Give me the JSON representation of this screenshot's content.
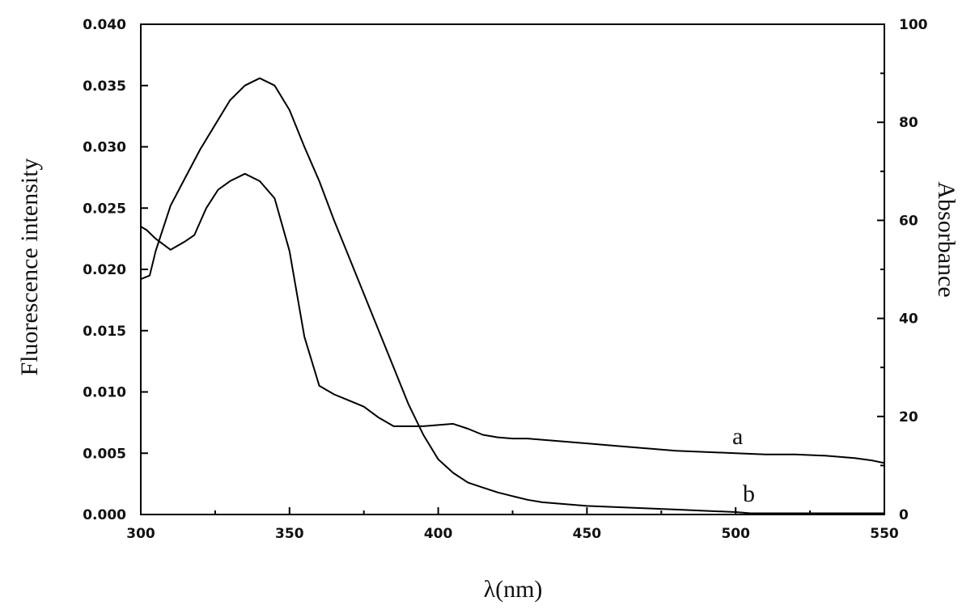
{
  "chart_data": {
    "type": "line",
    "xlabel": "λ(nm)",
    "ylabel_left": "Fluorescence intensity",
    "ylabel_right": "Absorbance",
    "xlim": [
      300,
      550
    ],
    "ylim_left": [
      0,
      0.04
    ],
    "ylim_right": [
      0,
      100
    ],
    "x_ticks": [
      "300",
      "350",
      "400",
      "450",
      "500",
      "550"
    ],
    "y_left_ticks": [
      "0.000",
      "0.005",
      "0.010",
      "0.015",
      "0.020",
      "0.025",
      "0.030",
      "0.035",
      "0.040"
    ],
    "y_right_ticks": [
      "0",
      "20",
      "40",
      "60",
      "80",
      "100"
    ],
    "grid": false,
    "series": [
      {
        "name": "a",
        "x": [
          300,
          302,
          305,
          310,
          315,
          318,
          322,
          326,
          330,
          335,
          340,
          345,
          350,
          355,
          360,
          365,
          370,
          375,
          380,
          385,
          390,
          395,
          400,
          405,
          410,
          415,
          420,
          425,
          430,
          440,
          450,
          460,
          470,
          480,
          490,
          500,
          510,
          520,
          530,
          540,
          546,
          550
        ],
        "y": [
          0.0235,
          0.0232,
          0.0225,
          0.0216,
          0.0223,
          0.0228,
          0.025,
          0.0265,
          0.0272,
          0.0278,
          0.0272,
          0.0258,
          0.0215,
          0.0145,
          0.0105,
          0.0098,
          0.0093,
          0.0088,
          0.0079,
          0.0072,
          0.0072,
          0.0072,
          0.0073,
          0.0074,
          0.007,
          0.0065,
          0.0063,
          0.0062,
          0.0062,
          0.006,
          0.0058,
          0.0056,
          0.0054,
          0.0052,
          0.0051,
          0.005,
          0.0049,
          0.0049,
          0.0048,
          0.0046,
          0.0044,
          0.0042
        ]
      },
      {
        "name": "b",
        "x": [
          300,
          303,
          305,
          310,
          315,
          320,
          325,
          330,
          335,
          340,
          345,
          350,
          355,
          360,
          365,
          370,
          375,
          380,
          385,
          390,
          395,
          400,
          405,
          410,
          415,
          420,
          425,
          430,
          435,
          440,
          450,
          460,
          470,
          480,
          490,
          500,
          505,
          510,
          520,
          530,
          540,
          550
        ],
        "y": [
          0.0192,
          0.0195,
          0.0215,
          0.0252,
          0.0275,
          0.0298,
          0.0318,
          0.0338,
          0.035,
          0.0356,
          0.035,
          0.033,
          0.03,
          0.0272,
          0.024,
          0.021,
          0.018,
          0.015,
          0.012,
          0.009,
          0.0065,
          0.0045,
          0.0034,
          0.0026,
          0.0022,
          0.0018,
          0.0015,
          0.0012,
          0.001,
          0.0009,
          0.0007,
          0.0006,
          0.0005,
          0.0004,
          0.0003,
          0.0002,
          0.0001,
          0.0001,
          0.0001,
          0.0001,
          0.0001,
          0.0001
        ]
      }
    ]
  }
}
